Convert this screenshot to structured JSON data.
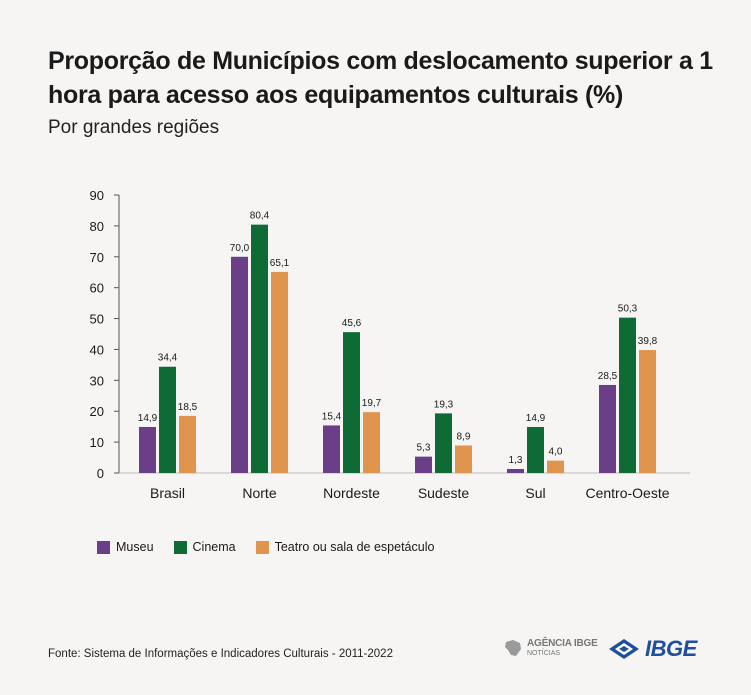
{
  "title": "Proporção de Municípios com deslocamento superior a 1 hora para acesso aos equipamentos culturais (%)",
  "subtitle": "Por grandes regiões",
  "source": "Fonte: Sistema de Informações e Indicadores Culturais - 2011-2022",
  "logos": {
    "agencia_line1": "AGÊNCIA IBGE",
    "agencia_line2": "NOTÍCIAS",
    "ibge": "IBGE"
  },
  "colors": {
    "museu": "#6b3f87",
    "cinema": "#0e6b35",
    "teatro": "#e0954e",
    "axis": "#555555",
    "brand": "#1f4e9c"
  },
  "chart_data": {
    "type": "bar",
    "categories": [
      "Brasil",
      "Norte",
      "Nordeste",
      "Sudeste",
      "Sul",
      "Centro-Oeste"
    ],
    "series": [
      {
        "name": "Museu",
        "values": [
          14.9,
          70.0,
          15.4,
          5.3,
          1.3,
          28.5
        ]
      },
      {
        "name": "Cinema",
        "values": [
          34.4,
          80.4,
          45.6,
          19.3,
          14.9,
          50.3
        ]
      },
      {
        "name": "Teatro ou sala de espetáculo",
        "values": [
          18.5,
          65.1,
          19.7,
          8.9,
          4.0,
          39.8
        ]
      }
    ],
    "value_labels": [
      [
        "14,9",
        "70,0",
        "15,4",
        "5,3",
        "1,3",
        "28,5"
      ],
      [
        "34,4",
        "80,4",
        "45,6",
        "19,3",
        "14,9",
        "50,3"
      ],
      [
        "18,5",
        "65,1",
        "19,7",
        "8,9",
        "4,0",
        "39,8"
      ]
    ],
    "yticks": [
      0,
      10,
      20,
      30,
      40,
      50,
      60,
      70,
      80,
      90
    ],
    "ylim": [
      0,
      90
    ],
    "grid": false,
    "legend_position": "bottom-left"
  }
}
